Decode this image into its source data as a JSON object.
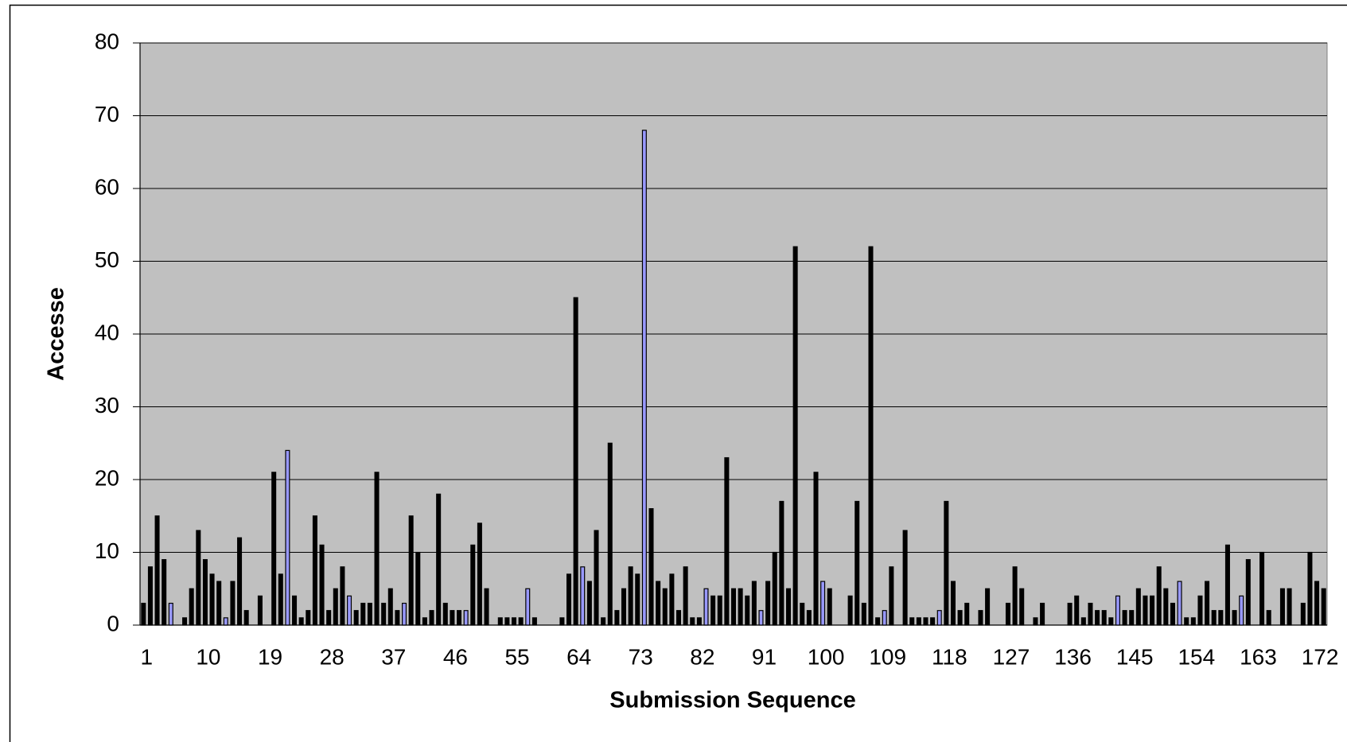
{
  "chart_data": {
    "type": "bar",
    "x_label": "Submission Sequence",
    "y_label": "Accesse",
    "categories": [
      1,
      null,
      null,
      null,
      null,
      null,
      null,
      null,
      null,
      10,
      null,
      null,
      null,
      null,
      null,
      null,
      null,
      null,
      19,
      null,
      null,
      null,
      null,
      null,
      null,
      null,
      null,
      28,
      null,
      null,
      null,
      null,
      null,
      null,
      null,
      null,
      37,
      null,
      null,
      null,
      null,
      null,
      null,
      null,
      null,
      46,
      null,
      null,
      null,
      null,
      null,
      null,
      null,
      null,
      55,
      null,
      null,
      null,
      null,
      null,
      null,
      null,
      null,
      64,
      null,
      null,
      null,
      null,
      null,
      null,
      null,
      null,
      73,
      null,
      null,
      null,
      null,
      null,
      null,
      null,
      null,
      82,
      null,
      null,
      null,
      null,
      null,
      null,
      null,
      null,
      91,
      null,
      null,
      null,
      null,
      null,
      null,
      null,
      null,
      100,
      null,
      null,
      null,
      null,
      null,
      null,
      null,
      null,
      109,
      null,
      null,
      null,
      null,
      null,
      null,
      null,
      null,
      118,
      null,
      null,
      null,
      null,
      null,
      null,
      null,
      null,
      127,
      null,
      null,
      null,
      null,
      null,
      null,
      null,
      null,
      136,
      null,
      null,
      null,
      null,
      null,
      null,
      null,
      null,
      145,
      null,
      null,
      null,
      null,
      null,
      null,
      null,
      null,
      154,
      null,
      null,
      null,
      null,
      null,
      null,
      null,
      null,
      163,
      null,
      null,
      null,
      null,
      null,
      null,
      null,
      null,
      172,
      null
    ],
    "values": [
      3,
      8,
      15,
      9,
      3,
      0,
      1,
      5,
      13,
      9,
      7,
      6,
      1,
      6,
      12,
      2,
      0,
      4,
      0,
      21,
      7,
      24,
      4,
      1,
      2,
      15,
      11,
      2,
      5,
      8,
      4,
      2,
      3,
      3,
      21,
      3,
      5,
      2,
      3,
      15,
      10,
      1,
      2,
      18,
      3,
      2,
      2,
      2,
      11,
      14,
      5,
      0,
      1,
      1,
      1,
      1,
      5,
      1,
      0,
      0,
      0,
      1,
      7,
      45,
      8,
      6,
      13,
      1,
      25,
      2,
      5,
      8,
      7,
      68,
      16,
      6,
      5,
      7,
      2,
      8,
      1,
      1,
      5,
      4,
      4,
      23,
      5,
      5,
      4,
      6,
      2,
      6,
      10,
      17,
      5,
      52,
      3,
      2,
      21,
      6,
      5,
      0,
      0,
      4,
      17,
      3,
      52,
      1,
      2,
      8,
      0,
      13,
      1,
      1,
      1,
      1,
      2,
      17,
      6,
      2,
      3,
      0,
      2,
      5,
      0,
      0,
      3,
      8,
      5,
      0,
      1,
      3,
      0,
      0,
      0,
      3,
      4,
      1,
      3,
      2,
      2,
      1,
      4,
      2,
      2,
      5,
      4,
      4,
      8,
      5,
      3,
      6,
      1,
      1,
      4,
      6,
      2,
      2,
      11,
      2,
      4,
      9,
      0,
      10,
      2,
      0,
      5,
      5,
      0,
      3,
      10,
      6,
      5
    ],
    "colors": [
      "#000",
      "#000",
      "#000",
      "#000",
      "#99f",
      "#000",
      "#000",
      "#000",
      "#000",
      "#000",
      "#000",
      "#000",
      "#99f",
      "#000",
      "#000",
      "#000",
      "#000",
      "#000",
      "#000",
      "#000",
      "#000",
      "#99f",
      "#000",
      "#000",
      "#000",
      "#000",
      "#000",
      "#000",
      "#000",
      "#000",
      "#99f",
      "#000",
      "#000",
      "#000",
      "#000",
      "#000",
      "#000",
      "#000",
      "#99f",
      "#000",
      "#000",
      "#000",
      "#000",
      "#000",
      "#000",
      "#000",
      "#000",
      "#99f",
      "#000",
      "#000",
      "#000",
      "#000",
      "#000",
      "#000",
      "#000",
      "#000",
      "#99f",
      "#000",
      "#000",
      "#000",
      "#000",
      "#000",
      "#000",
      "#000",
      "#99f",
      "#000",
      "#000",
      "#000",
      "#000",
      "#000",
      "#000",
      "#000",
      "#000",
      "#99f",
      "#000",
      "#000",
      "#000",
      "#000",
      "#000",
      "#000",
      "#000",
      "#000",
      "#99f",
      "#000",
      "#000",
      "#000",
      "#000",
      "#000",
      "#000",
      "#000",
      "#99f",
      "#000",
      "#000",
      "#000",
      "#000",
      "#000",
      "#000",
      "#000",
      "#000",
      "#99f",
      "#000",
      "#000",
      "#000",
      "#000",
      "#000",
      "#000",
      "#000",
      "#000",
      "#99f",
      "#000",
      "#000",
      "#000",
      "#000",
      "#000",
      "#000",
      "#000",
      "#99f",
      "#000",
      "#000",
      "#000",
      "#000",
      "#000",
      "#000",
      "#000",
      "#000",
      "#000",
      "#000",
      "#000",
      "#000",
      "#000",
      "#000",
      "#000",
      "#000",
      "#000",
      "#000",
      "#000",
      "#000",
      "#000",
      "#000",
      "#000",
      "#000",
      "#000",
      "#99f",
      "#000",
      "#000",
      "#000",
      "#000",
      "#000",
      "#000",
      "#000",
      "#000",
      "#99f",
      "#000",
      "#000",
      "#000",
      "#000",
      "#000",
      "#000",
      "#000",
      "#000",
      "#99f",
      "#000",
      "#000",
      "#000",
      "#000",
      "#000",
      "#000",
      "#000",
      "#000",
      "#000",
      "#000",
      "#000",
      "#000"
    ],
    "ylim": [
      0,
      80
    ],
    "yticks": [
      0,
      10,
      20,
      30,
      40,
      50,
      60,
      70,
      80
    ],
    "grid": true,
    "plot_background": "#c0c0c0"
  }
}
